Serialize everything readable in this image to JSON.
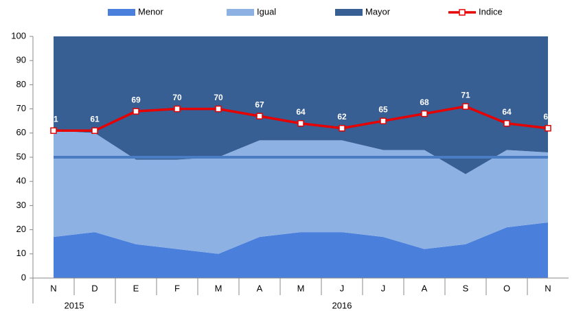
{
  "chart_data": {
    "type": "stacked_area_line",
    "categories": [
      "N",
      "D",
      "E",
      "F",
      "M",
      "A",
      "M",
      "J",
      "J",
      "A",
      "S",
      "O",
      "N"
    ],
    "category_groups": [
      "2015",
      "2015",
      "2016",
      "2016",
      "2016",
      "2016",
      "2016",
      "2016",
      "2016",
      "2016",
      "2016",
      "2016",
      "2016"
    ],
    "series": [
      {
        "name": "Menor",
        "color": "#4a80dc",
        "values": [
          17,
          19,
          14,
          12,
          10,
          17,
          19,
          19,
          17,
          12,
          14,
          21,
          23
        ]
      },
      {
        "name": "Igual",
        "color": "#8eb1e4",
        "values": [
          44,
          41,
          35,
          37,
          40,
          40,
          38,
          38,
          36,
          41,
          29,
          32,
          29
        ]
      },
      {
        "name": "Mayor",
        "color": "#375f94",
        "values": [
          39,
          40,
          51,
          51,
          50,
          43,
          43,
          43,
          47,
          47,
          57,
          47,
          48
        ]
      },
      {
        "name": "Indice",
        "color": "#e60000",
        "kind": "line",
        "values": [
          61,
          61,
          69,
          70,
          70,
          67,
          64,
          62,
          65,
          68,
          71,
          64,
          62
        ]
      }
    ],
    "reference_value": 50,
    "reference_color": "#4a7cc4",
    "ylim": [
      0,
      100
    ],
    "yticks": [
      0,
      10,
      20,
      30,
      40,
      50,
      60,
      70,
      80,
      90,
      100
    ]
  }
}
